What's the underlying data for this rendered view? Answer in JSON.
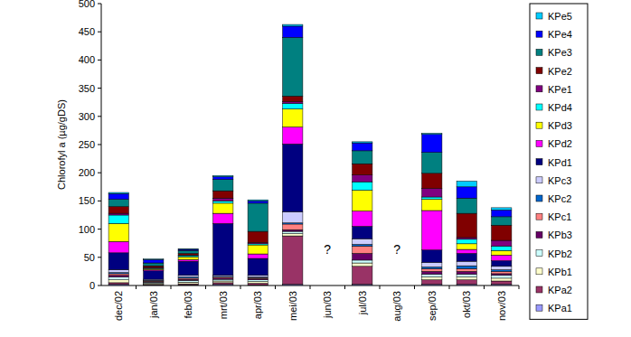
{
  "chart_data": {
    "type": "bar",
    "stacked": true,
    "grid": false,
    "legend": "right",
    "y_label": "Chlorofyl a (µg/gDS)",
    "categories": [
      "dec/02",
      "jan/03",
      "feb/03",
      "mrt/03",
      "apr/03",
      "mei/03",
      "jun/03",
      "jul/03",
      "aug/03",
      "sep/03",
      "okt/03",
      "nov/03"
    ],
    "ylim": [
      0,
      500
    ],
    "yticks": [
      0,
      50,
      100,
      150,
      200,
      250,
      300,
      350,
      400,
      450,
      500
    ],
    "annotations": [
      {
        "text": "?",
        "x": "jun/03"
      },
      {
        "text": "?",
        "x": "aug/03"
      }
    ],
    "series": [
      {
        "name": "KPa1",
        "color": "#9999ff",
        "values": [
          2,
          1,
          1,
          2,
          1,
          2,
          null,
          2,
          null,
          2,
          2,
          2
        ]
      },
      {
        "name": "KPa2",
        "color": "#993366",
        "values": [
          3,
          1,
          2,
          3,
          3,
          86,
          null,
          32,
          null,
          8,
          8,
          6
        ]
      },
      {
        "name": "KPb1",
        "color": "#ffffcc",
        "values": [
          5,
          2,
          3,
          3,
          3,
          4,
          null,
          6,
          null,
          5,
          5,
          5
        ]
      },
      {
        "name": "KPb2",
        "color": "#ccffff",
        "values": [
          5,
          2,
          3,
          3,
          3,
          4,
          null,
          5,
          null,
          5,
          5,
          5
        ]
      },
      {
        "name": "KPb3",
        "color": "#660066",
        "values": [
          3,
          1,
          2,
          2,
          2,
          3,
          null,
          12,
          null,
          5,
          5,
          3
        ]
      },
      {
        "name": "KPc1",
        "color": "#ff8080",
        "values": [
          3,
          1,
          2,
          2,
          2,
          10,
          null,
          13,
          null,
          5,
          5,
          4
        ]
      },
      {
        "name": "KPc2",
        "color": "#0066cc",
        "values": [
          2,
          1,
          2,
          1,
          1,
          2,
          null,
          3,
          null,
          3,
          5,
          3
        ]
      },
      {
        "name": "KPc3",
        "color": "#ccccff",
        "values": [
          5,
          2,
          3,
          2,
          3,
          20,
          null,
          10,
          null,
          8,
          8,
          6
        ]
      },
      {
        "name": "KPd1",
        "color": "#000080",
        "values": [
          30,
          15,
          25,
          92,
          30,
          120,
          null,
          22,
          null,
          22,
          14,
          10
        ]
      },
      {
        "name": "KPd2",
        "color": "#ff00ff",
        "values": [
          20,
          2,
          3,
          18,
          8,
          30,
          null,
          27,
          null,
          70,
          7,
          10
        ]
      },
      {
        "name": "KPd3",
        "color": "#ffff00",
        "values": [
          32,
          2,
          5,
          18,
          16,
          32,
          null,
          37,
          null,
          20,
          10,
          8
        ]
      },
      {
        "name": "KPd4",
        "color": "#00ffff",
        "values": [
          15,
          1,
          2,
          4,
          2,
          10,
          null,
          15,
          null,
          4,
          8,
          8
        ]
      },
      {
        "name": "KPe1",
        "color": "#800080",
        "values": [
          3,
          1,
          1,
          5,
          2,
          3,
          null,
          12,
          null,
          15,
          3,
          10
        ]
      },
      {
        "name": "KPe2",
        "color": "#800000",
        "values": [
          12,
          3,
          3,
          13,
          20,
          10,
          null,
          20,
          null,
          27,
          43,
          27
        ]
      },
      {
        "name": "KPe3",
        "color": "#008080",
        "values": [
          13,
          5,
          5,
          20,
          50,
          104,
          null,
          23,
          null,
          37,
          27,
          15
        ]
      },
      {
        "name": "KPe4",
        "color": "#0000ff",
        "values": [
          10,
          6,
          2,
          5,
          4,
          20,
          null,
          14,
          null,
          32,
          20,
          12
        ]
      },
      {
        "name": "KPe5",
        "color": "#00ccff",
        "values": [
          2,
          1,
          1,
          2,
          2,
          3,
          null,
          2,
          null,
          2,
          10,
          4
        ]
      }
    ]
  }
}
